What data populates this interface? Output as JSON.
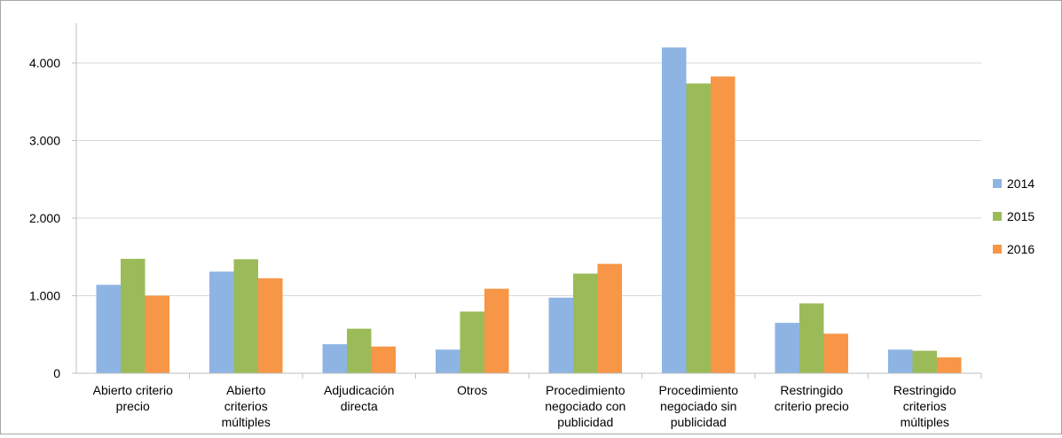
{
  "chart_data": {
    "type": "bar",
    "title": "",
    "xlabel": "",
    "ylabel": "",
    "ylim": [
      0,
      4600
    ],
    "y_ticks": [
      0,
      1000,
      2000,
      3000,
      4000
    ],
    "y_tick_labels": [
      "0",
      "1.000",
      "2.000",
      "3.000",
      "4.000"
    ],
    "grid": true,
    "legend_position": "right",
    "categories": [
      [
        "Abierto criterio",
        "precio"
      ],
      [
        "Abierto",
        "criterios",
        "múltiples"
      ],
      [
        "Adjudicación",
        "directa"
      ],
      [
        "Otros"
      ],
      [
        "Procedimiento",
        "negociado con",
        "publicidad"
      ],
      [
        "Procedimiento",
        "negociado sin",
        "publicidad"
      ],
      [
        "Restringido",
        "criterio precio"
      ],
      [
        "Restringido",
        "criterios",
        "múltiples"
      ]
    ],
    "series": [
      {
        "name": "2014",
        "color": "#8eb4e3",
        "values": [
          1140,
          1310,
          375,
          305,
          975,
          4200,
          650,
          305
        ]
      },
      {
        "name": "2015",
        "color": "#9bbb59",
        "values": [
          1475,
          1470,
          575,
          795,
          1285,
          3735,
          900,
          290
        ]
      },
      {
        "name": "2016",
        "color": "#f79646",
        "values": [
          1000,
          1225,
          345,
          1090,
          1410,
          3825,
          510,
          205
        ]
      }
    ]
  }
}
